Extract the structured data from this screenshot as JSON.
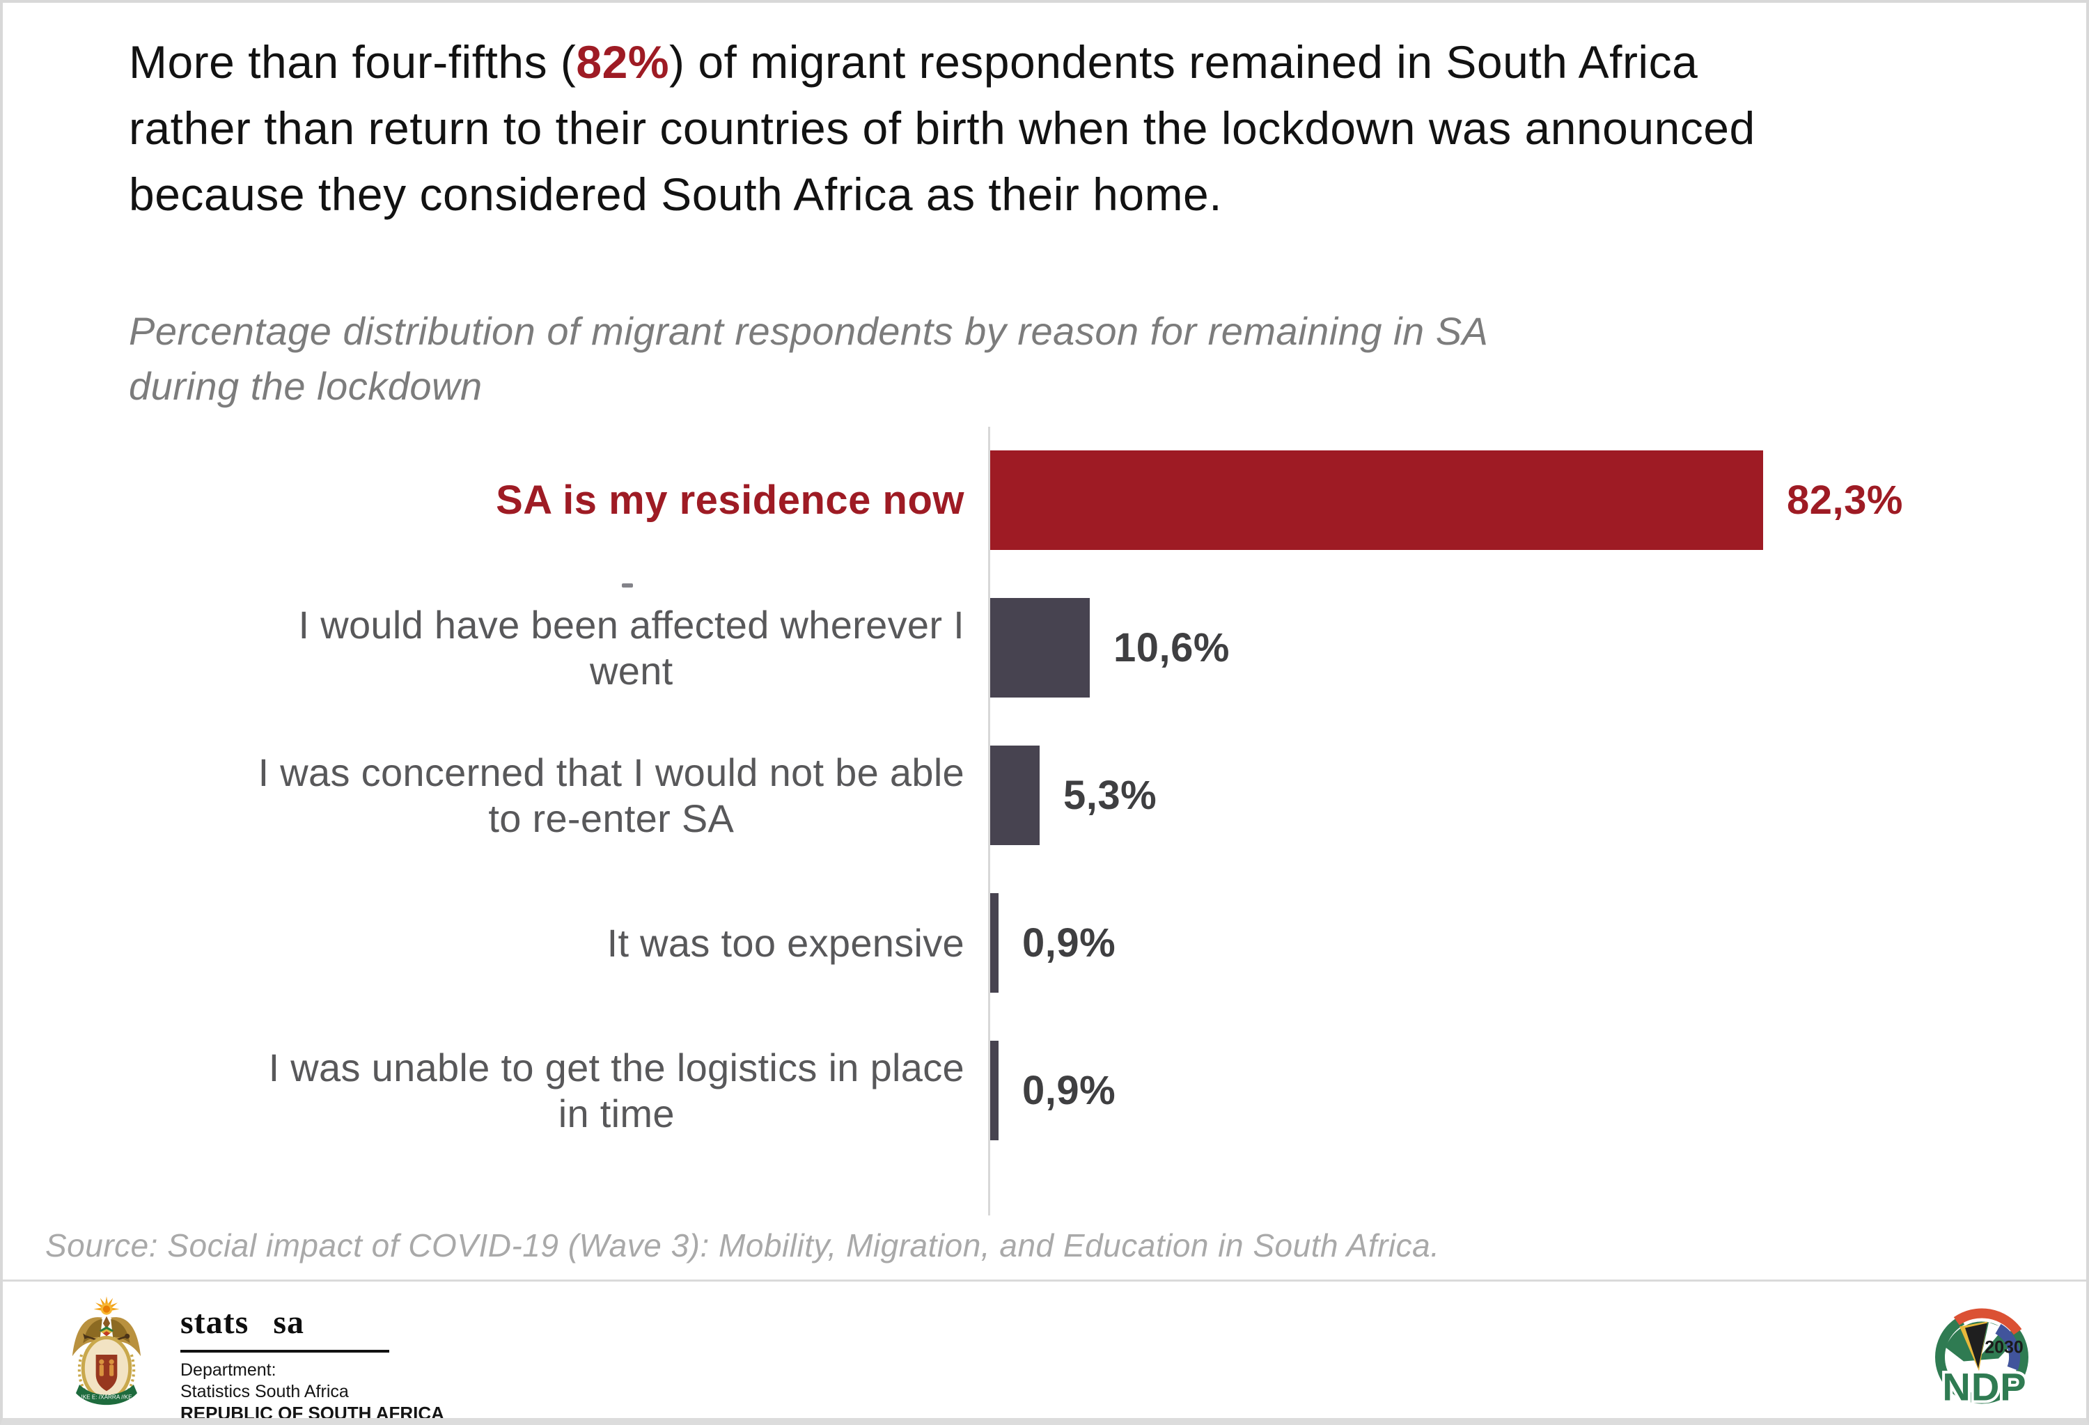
{
  "title": {
    "line1_pre": "More than four-fifths (",
    "line1_highlight": "82%",
    "line1_post": ") of migrant respondents remained in South Africa",
    "line2": "rather than return to their countries of birth when the lockdown was announced",
    "line3": "because they considered South Africa as their home.",
    "highlight_color": "#9e1b24"
  },
  "subtitle": {
    "line1": "Percentage distribution of migrant respondents by reason for remaining in SA",
    "line2": "during the lockdown"
  },
  "chart_data": {
    "type": "bar",
    "orientation": "horizontal",
    "title": "Percentage distribution of migrant respondents by reason for remaining in SA during the lockdown",
    "xlabel": "",
    "ylabel": "",
    "xlim": [
      0,
      100
    ],
    "grid": false,
    "data_labels": true,
    "categories": [
      "SA is my residence now",
      "I would have been affected wherever I went",
      "I was concerned that I would not be able to re-enter SA",
      "It was too expensive",
      "I was unable to get the logistics in place in time"
    ],
    "values": [
      82.3,
      10.6,
      5.3,
      0.9,
      0.9
    ],
    "value_labels": [
      "82,3%",
      "10,6%",
      "5,3%",
      "0,9%",
      "0,9%"
    ],
    "label_lines": [
      [
        "SA is my residence now"
      ],
      [
        "I would have been affected wherever I",
        "went"
      ],
      [
        "I was concerned that I would not be able",
        "to re-enter SA"
      ],
      [
        "It was too expensive"
      ],
      [
        "I was unable to get the logistics in place",
        "in time"
      ]
    ],
    "bar_colors": [
      "#9e1b24",
      "#474350",
      "#474350",
      "#474350",
      "#474350"
    ],
    "value_colors": [
      "#9e1b24",
      "#3f3f41",
      "#3f3f41",
      "#3f3f41",
      "#3f3f41"
    ],
    "label_bold": [
      true,
      false,
      false,
      false,
      false
    ],
    "axis_color": "#d8d8d8"
  },
  "source": {
    "text": "Source: Social impact of COVID-19 (Wave 3): Mobility, Migration, and Education in South Africa."
  },
  "footer": {
    "statssa": {
      "brand": "stats sa",
      "dept_line1": "Department:",
      "dept_line2": "Statistics South Africa",
      "dept_line3": "REPUBLIC OF SOUTH AFRICA",
      "motto": "!KE E: /XARRA //KE"
    },
    "ndp": {
      "year": "2030",
      "acronym": "NDP"
    }
  }
}
